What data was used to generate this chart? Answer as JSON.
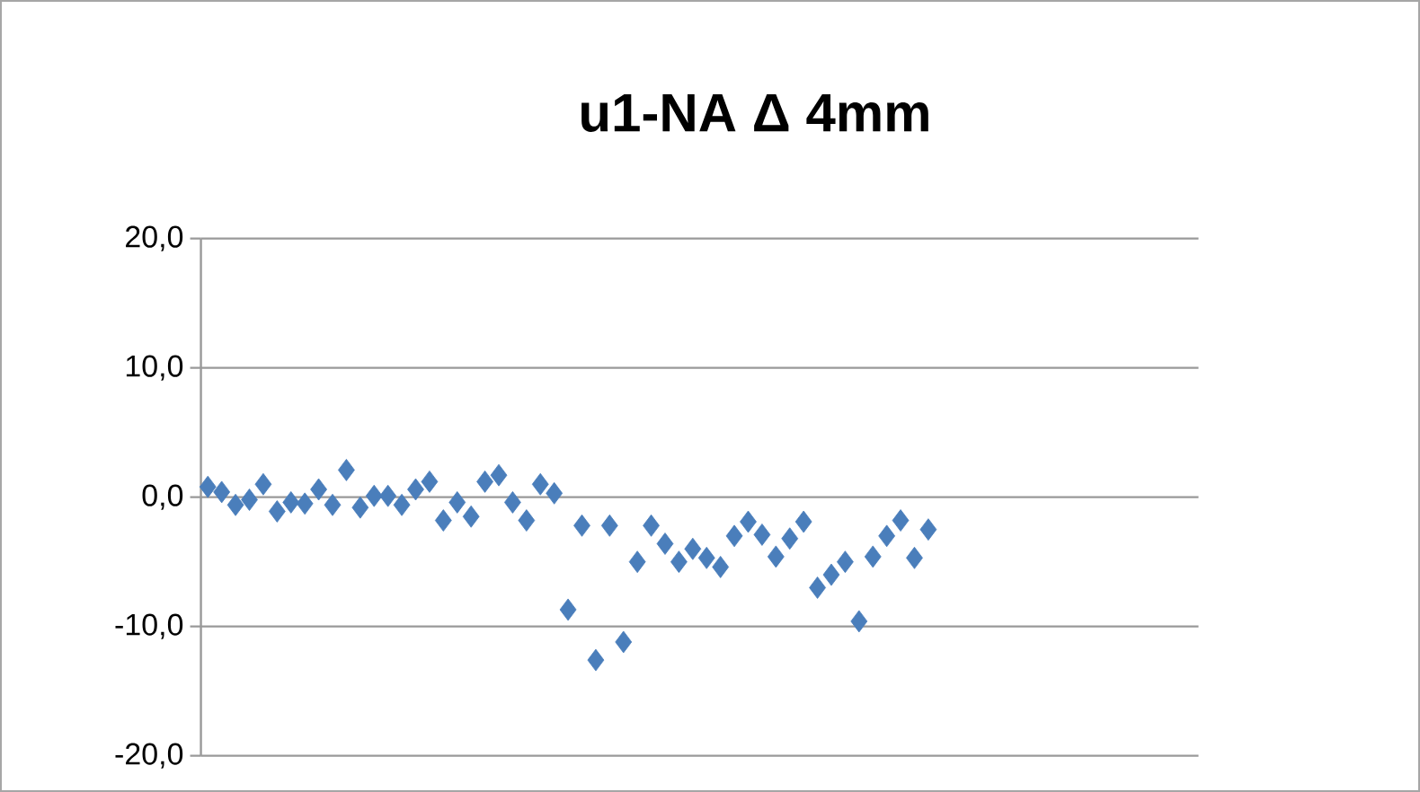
{
  "chart_data": {
    "type": "scatter",
    "title": "u1-NA Δ 4mm",
    "categories": [
      null,
      null,
      null,
      null,
      null,
      null,
      null,
      null,
      null,
      null,
      null,
      null,
      null,
      null,
      null,
      null,
      null,
      null,
      null,
      null,
      null,
      null,
      null,
      null,
      null,
      null,
      null,
      null,
      null,
      null,
      null,
      null,
      null,
      null,
      null,
      null,
      null,
      null,
      null,
      null,
      null,
      null,
      null,
      null,
      null,
      null,
      null,
      null,
      null,
      null,
      null,
      null,
      null,
      null,
      null,
      null,
      null,
      null,
      null,
      null,
      null,
      null,
      null,
      null,
      null,
      null,
      null,
      null,
      null,
      null,
      null,
      null
    ],
    "series": [
      {
        "color": "#4a7ebb",
        "values": [
          0.8,
          0.4,
          -0.6,
          -0.2,
          1.0,
          -1.1,
          -0.4,
          -0.5,
          0.6,
          -0.6,
          2.1,
          -0.8,
          0.1,
          0.1,
          -0.6,
          0.6,
          1.2,
          -1.8,
          -0.4,
          -1.5,
          1.2,
          1.7,
          -0.4,
          -1.8,
          1.0,
          0.3,
          -8.7,
          -2.2,
          -12.6,
          -2.2,
          -11.2,
          -5.0,
          -2.2,
          -3.6,
          -5.0,
          -4.0,
          -4.7,
          -5.4,
          -3.0,
          -1.9,
          -2.9,
          -4.6,
          -3.2,
          -1.9,
          -7.0,
          -6.0,
          -5.0,
          -9.6,
          -4.6,
          -3.0,
          -1.8,
          -4.7,
          -2.5,
          null,
          null,
          null,
          null,
          null,
          null,
          null,
          null,
          null,
          null,
          null,
          null,
          null,
          null,
          null,
          null,
          null,
          null,
          null
        ]
      }
    ],
    "ylim": [
      -20,
      20
    ],
    "yticks": [
      {
        "value": -20,
        "label": "-20,0"
      },
      {
        "value": -10,
        "label": "-10,0"
      },
      {
        "value": 0,
        "label": "0,0"
      },
      {
        "value": 10,
        "label": "10,0"
      },
      {
        "value": 20,
        "label": "20,0"
      }
    ],
    "grid": "y",
    "marker": "diamond",
    "tick_labels": "y"
  }
}
